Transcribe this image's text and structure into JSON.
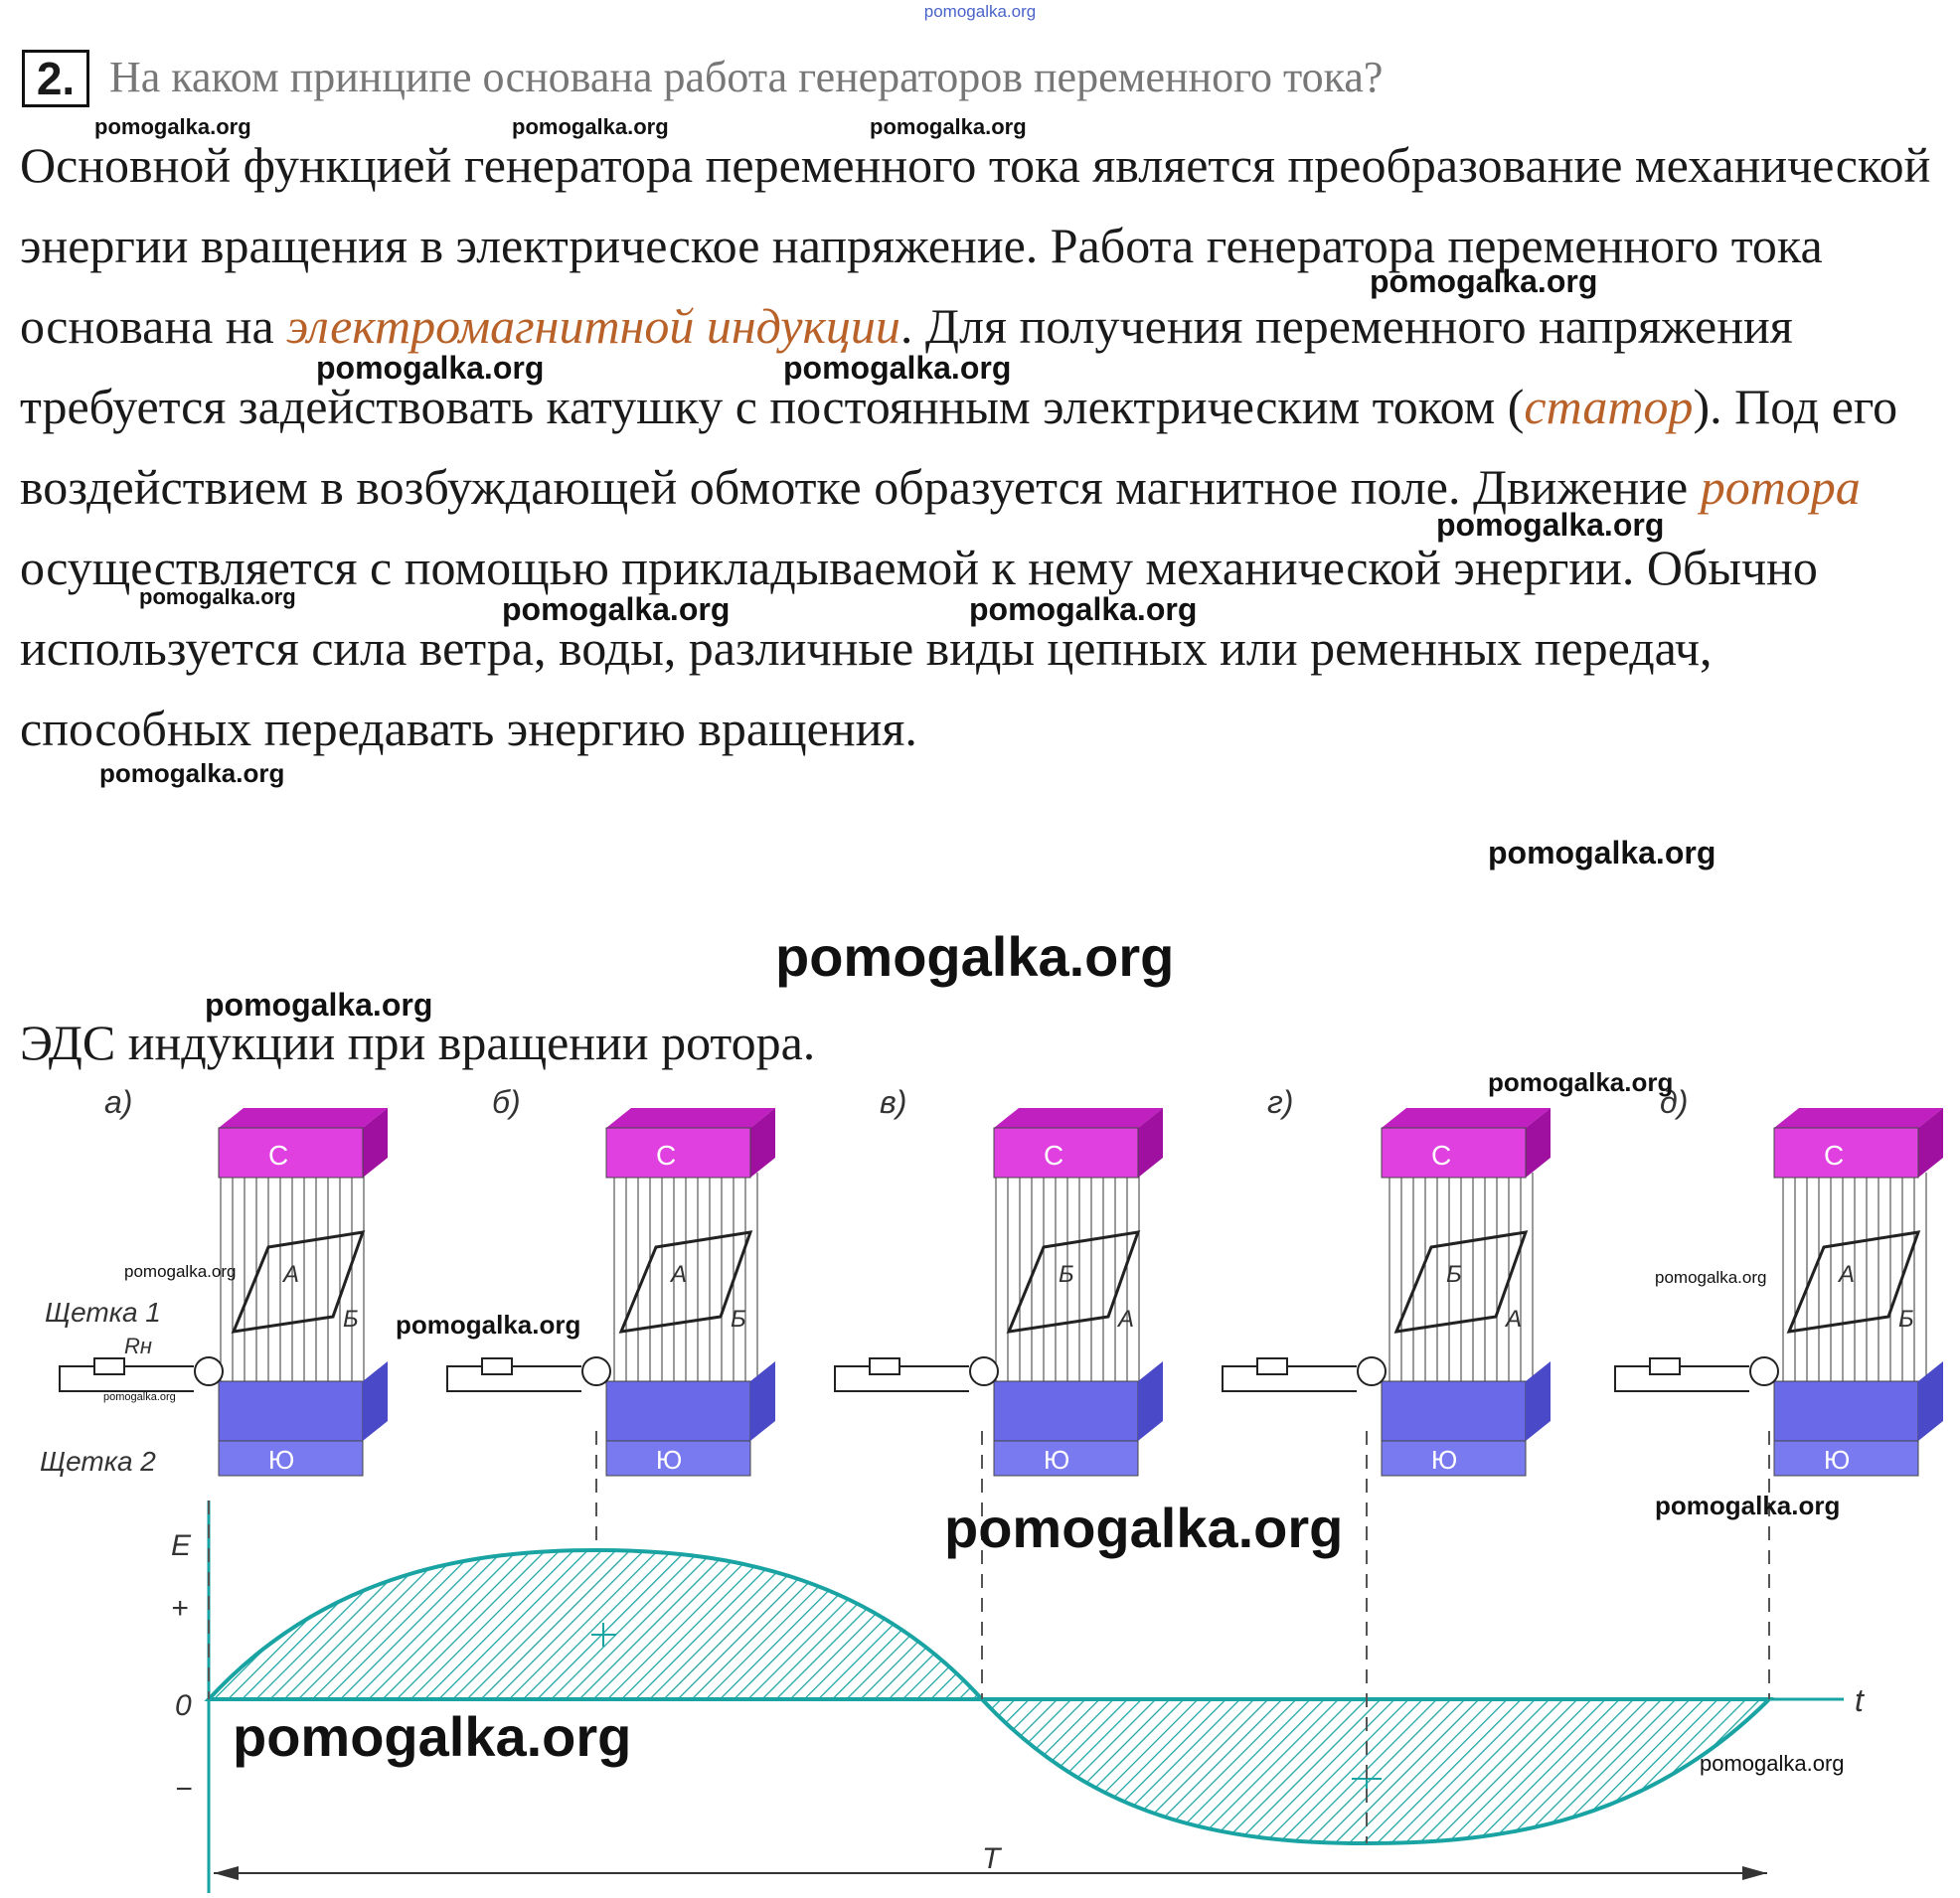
{
  "top_watermark": "pomogalka.org",
  "question": {
    "number": "2.",
    "text": "На каком принципе основана работа генераторов переменного тока?"
  },
  "answer": [
    {
      "text": "Основной функцией генератора переменного тока является преобразование механической энергии вращения в электрическое напряжение. Работа генератора переменного тока основана на "
    },
    {
      "text": "электромагнитной индукции",
      "em": true
    },
    {
      "text": ". Для получения переменного напряжения требуется задействовать катушку с постоянным электрическим током ("
    },
    {
      "text": "статор",
      "em": true
    },
    {
      "text": "). Под его воздействием в возбуждающей обмотке образуется магнитное поле. Движение "
    },
    {
      "text": "ротора",
      "em": true
    },
    {
      "text": " осуществляется с помощью прикладываемой к нему механической энергии. Обычно используется сила ветра, воды, различные виды цепных или ременных передач, способных передавать энергию вращения."
    }
  ],
  "caption": "ЭДС индукции при вращении ротора.",
  "watermark_text": "pomogalka.org",
  "figure": {
    "panels": [
      {
        "label": "а)",
        "frame_labels": [
          "А",
          "Б"
        ]
      },
      {
        "label": "б)",
        "frame_labels": [
          "А",
          "Б"
        ]
      },
      {
        "label": "в)",
        "frame_labels": [
          "Б",
          "А"
        ]
      },
      {
        "label": "г)",
        "frame_labels": [
          "Б",
          "А"
        ]
      },
      {
        "label": "д)",
        "frame_labels": [
          "А",
          "Б"
        ]
      }
    ],
    "north_label": "С",
    "south_label": "Ю",
    "brush1_label": "Щетка 1",
    "brush2_label": "Щетка 2",
    "resistor_label": "Rн",
    "axis": {
      "y_label": "E",
      "plus": "+",
      "zero": "0",
      "minus": "−",
      "t_label": "t",
      "period_label": "T"
    },
    "colors": {
      "north": "#e040e0",
      "south": "#6a6ae8",
      "wave": "#1aa3a3",
      "highlight": "#b8622a"
    }
  }
}
